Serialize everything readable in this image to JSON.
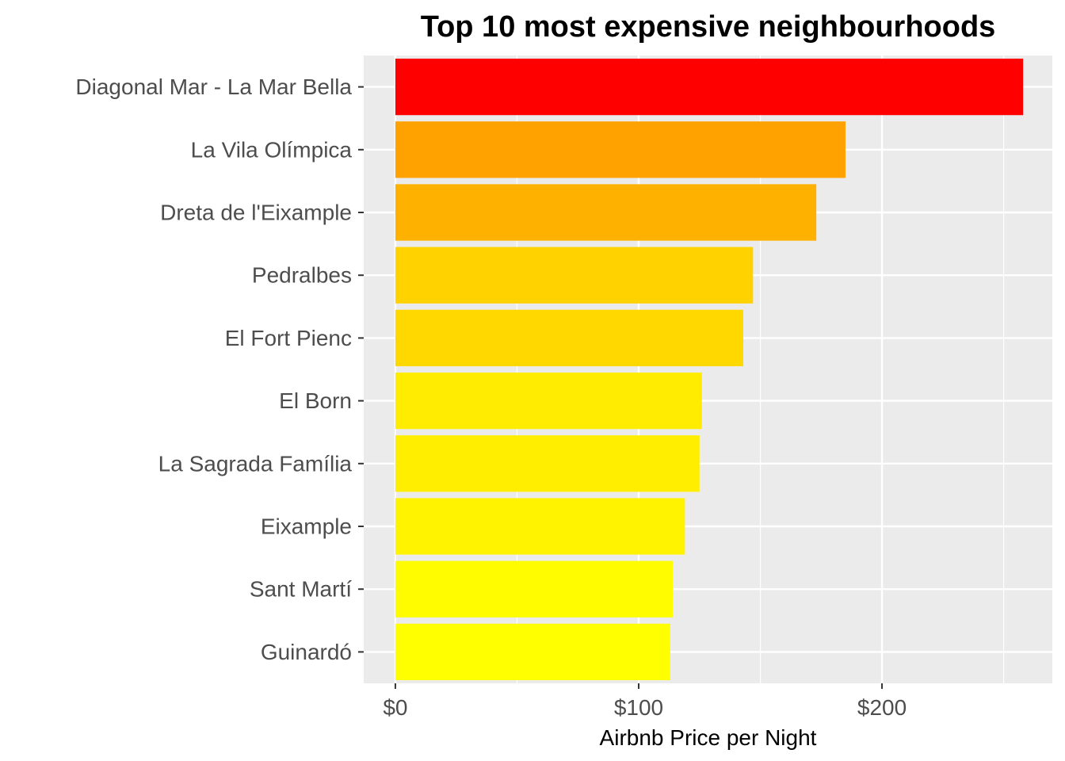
{
  "chart_data": {
    "type": "bar",
    "orientation": "horizontal",
    "title": "Top 10 most expensive neighbourhoods",
    "xlabel": "Airbnb Price per Night",
    "ylabel": "",
    "xlim": [
      -13,
      270
    ],
    "x_ticks": [
      {
        "value": 0,
        "label": "$0"
      },
      {
        "value": 100,
        "label": "$100"
      },
      {
        "value": 200,
        "label": "$200"
      }
    ],
    "x_minor_ticks": [
      50,
      150,
      250
    ],
    "grid": true,
    "legend": "none",
    "categories": [
      "Diagonal Mar - La Mar Bella",
      "La Vila Olímpica",
      "Dreta de l'Eixample",
      "Pedralbes",
      "El Fort Pienc",
      "El Born",
      "La Sagrada Família",
      "Eixample",
      "Sant Martí",
      "Guinardó"
    ],
    "values": [
      258,
      185,
      173,
      147,
      143,
      126,
      125,
      119,
      114,
      113
    ],
    "bar_colors": [
      "#FF0000",
      "#FFA200",
      "#FFB100",
      "#FFD200",
      "#FFD800",
      "#FFEC00",
      "#FFEE00",
      "#FFF300",
      "#FFFC00",
      "#FFFF00"
    ],
    "panel_background": "#EBEBEB",
    "gridline_color": "#FFFFFF"
  }
}
